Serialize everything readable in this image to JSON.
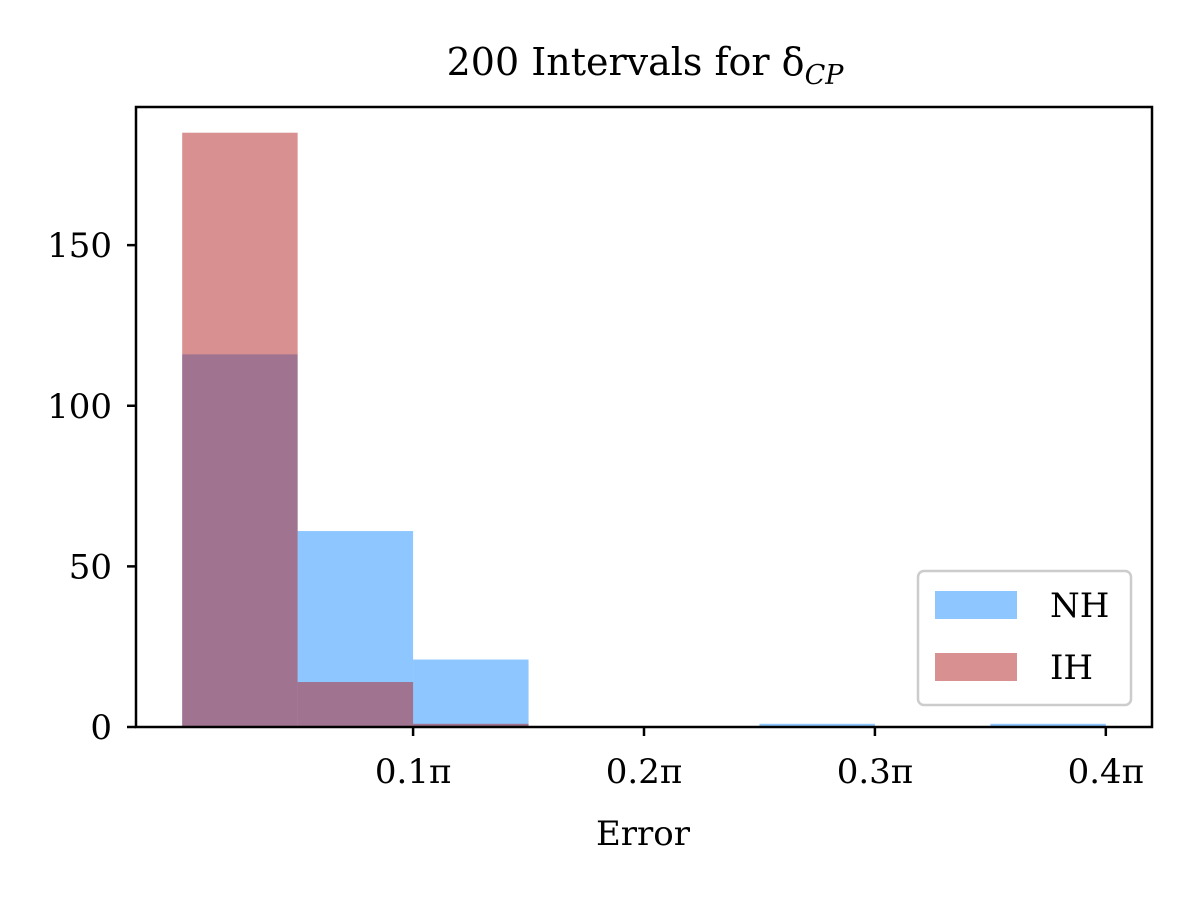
{
  "chart_data": {
    "type": "bar",
    "title": {
      "text": "200 Intervals for δ",
      "subscript": "CP"
    },
    "xlabel": "Error",
    "ylabel": "",
    "xlim": [
      -0.02,
      0.42
    ],
    "ylim": [
      0,
      193
    ],
    "bin_edges": [
      0.0,
      0.05,
      0.1,
      0.15,
      0.2,
      0.25,
      0.3,
      0.35,
      0.4
    ],
    "x_unit": "π",
    "x_ticks": [
      {
        "value": 0.1,
        "label": "0.1π"
      },
      {
        "value": 0.2,
        "label": "0.2π"
      },
      {
        "value": 0.3,
        "label": "0.3π"
      },
      {
        "value": 0.4,
        "label": "0.4π"
      }
    ],
    "y_ticks": [
      {
        "value": 0,
        "label": "0"
      },
      {
        "value": 50,
        "label": "50"
      },
      {
        "value": 100,
        "label": "100"
      },
      {
        "value": 150,
        "label": "150"
      }
    ],
    "series": [
      {
        "name": "NH",
        "color": "#1E90FF",
        "opacity": 0.5,
        "values": [
          116,
          61,
          21,
          0,
          0,
          1,
          0,
          1
        ]
      },
      {
        "name": "IH",
        "color": "#B22222",
        "opacity": 0.5,
        "values": [
          185,
          14,
          1,
          0,
          0,
          0,
          0,
          0
        ]
      }
    ],
    "legend": {
      "position": "lower-right"
    },
    "grid": false
  }
}
